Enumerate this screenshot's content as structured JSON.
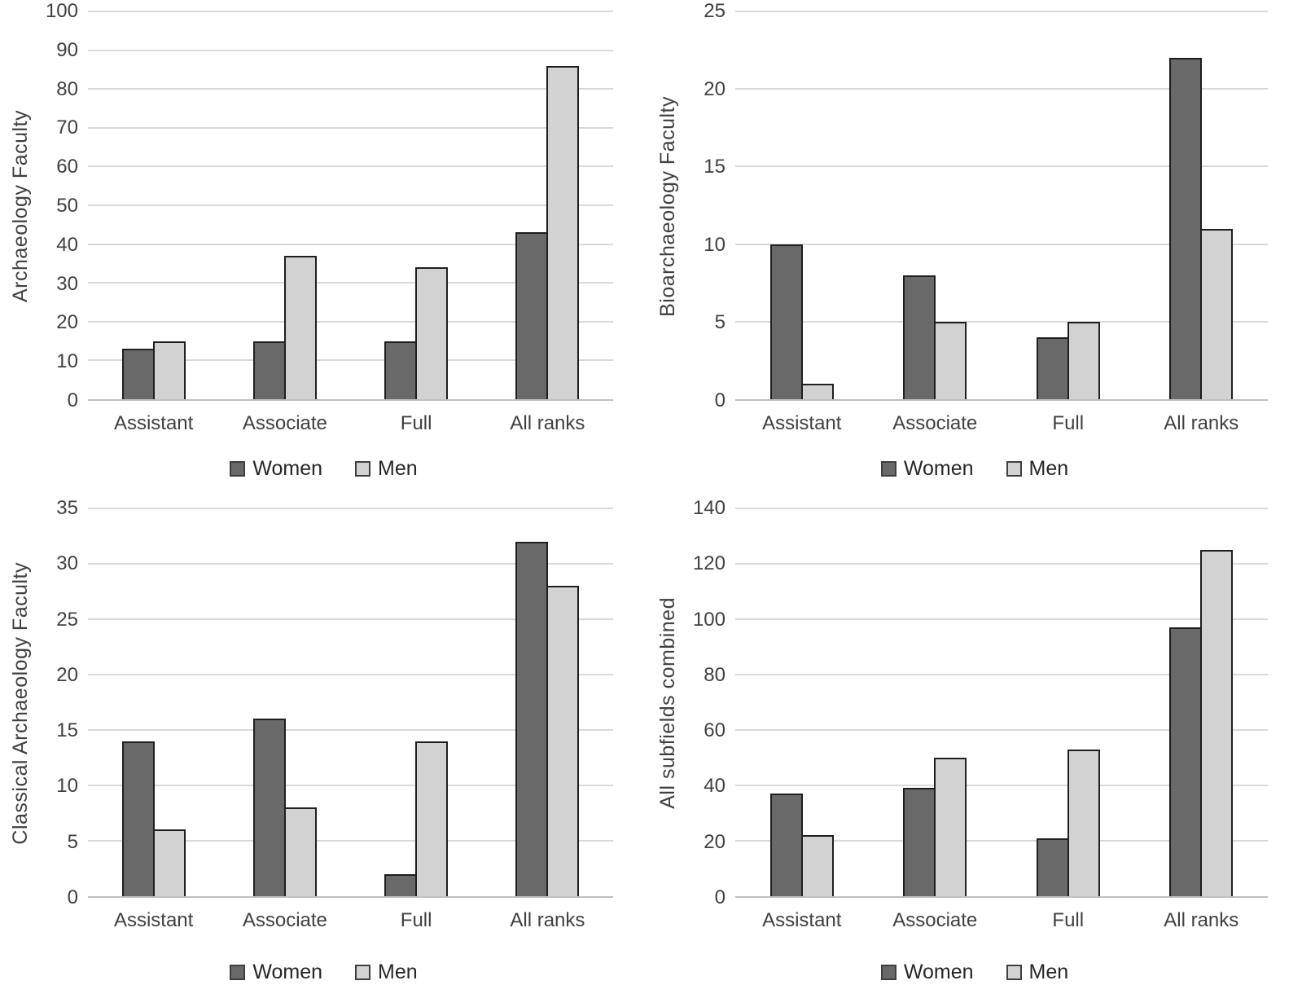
{
  "colors": {
    "women_fill": "#696969",
    "men_fill": "#d2d2d2",
    "bar_border": "#1f1f1f",
    "gridline": "#d9d9d9",
    "axis_line": "#bfbfbf",
    "text": "#404040"
  },
  "legend": {
    "series_labels": [
      "Women",
      "Men"
    ]
  },
  "chart_data": [
    {
      "type": "bar",
      "title": "",
      "xlabel": "",
      "ylabel": "Archaeology Faculty",
      "categories": [
        "Assistant",
        "Associate",
        "Full",
        "All ranks"
      ],
      "series": [
        {
          "name": "Women",
          "values": [
            13,
            15,
            15,
            43
          ]
        },
        {
          "name": "Men",
          "values": [
            15,
            37,
            34,
            86
          ]
        }
      ],
      "ylim": [
        0,
        100
      ],
      "ytick_step": 10,
      "grid": true,
      "legend_position": "bottom"
    },
    {
      "type": "bar",
      "title": "",
      "xlabel": "",
      "ylabel": "Bioarchaeology Faculty",
      "categories": [
        "Assistant",
        "Associate",
        "Full",
        "All ranks"
      ],
      "series": [
        {
          "name": "Women",
          "values": [
            10,
            8,
            4,
            22
          ]
        },
        {
          "name": "Men",
          "values": [
            1,
            5,
            5,
            11
          ]
        }
      ],
      "ylim": [
        0,
        25
      ],
      "ytick_step": 5,
      "grid": true,
      "legend_position": "bottom"
    },
    {
      "type": "bar",
      "title": "",
      "xlabel": "",
      "ylabel": "Classical Archaeology Faculty",
      "categories": [
        "Assistant",
        "Associate",
        "Full",
        "All ranks"
      ],
      "series": [
        {
          "name": "Women",
          "values": [
            14,
            16,
            2,
            32
          ]
        },
        {
          "name": "Men",
          "values": [
            6,
            8,
            14,
            28
          ]
        }
      ],
      "ylim": [
        0,
        35
      ],
      "ytick_step": 5,
      "grid": true,
      "legend_position": "bottom"
    },
    {
      "type": "bar",
      "title": "",
      "xlabel": "",
      "ylabel": "All subfields combined",
      "categories": [
        "Assistant",
        "Associate",
        "Full",
        "All ranks"
      ],
      "series": [
        {
          "name": "Women",
          "values": [
            37,
            39,
            21,
            97
          ]
        },
        {
          "name": "Men",
          "values": [
            22,
            50,
            53,
            125
          ]
        }
      ],
      "ylim": [
        0,
        140
      ],
      "ytick_step": 20,
      "grid": true,
      "legend_position": "bottom"
    }
  ]
}
